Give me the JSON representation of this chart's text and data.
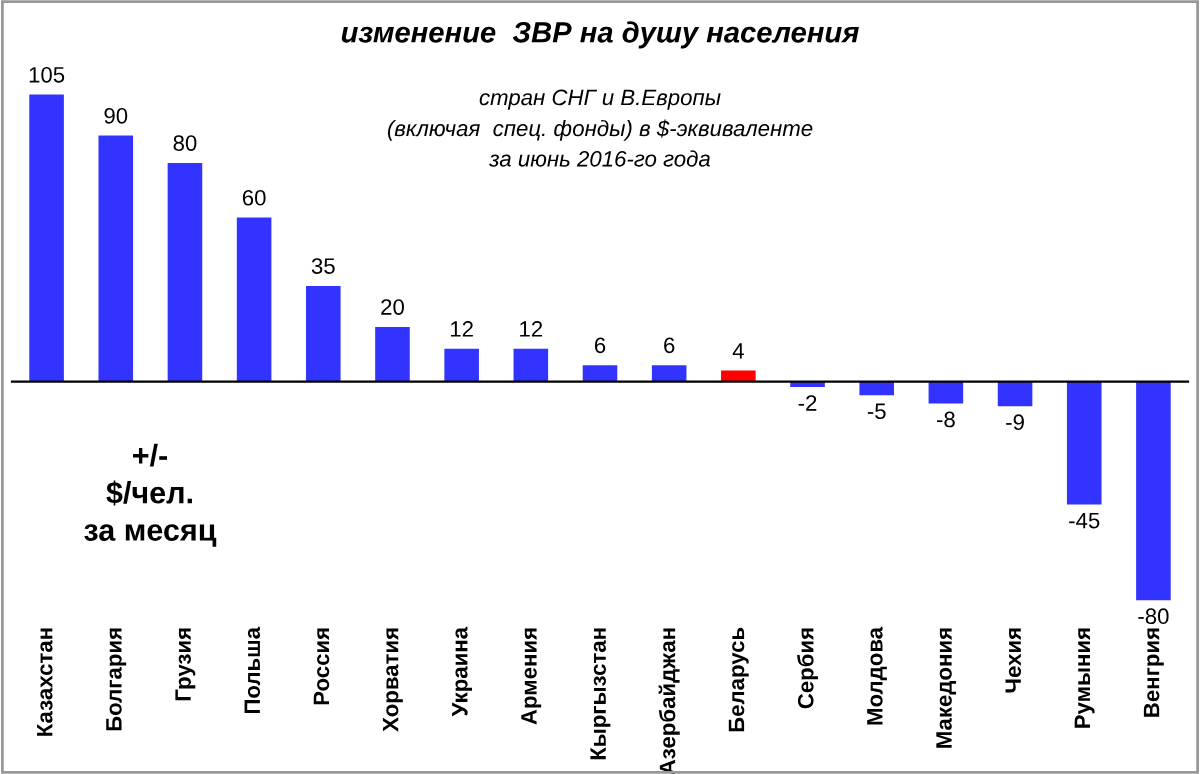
{
  "chart_data": {
    "type": "bar",
    "title": "изменение  ЗВР на душу населения",
    "subtitle": "стран СНГ и В.Европы\n(включая  спец. фонды) в $-эквиваленте\nза июнь 2016-го года",
    "categories": [
      "Казахстан",
      "Болгария",
      "Грузия",
      "Польша",
      "Россия",
      "Хорватия",
      "Украина",
      "Армения",
      "Кыргызстан",
      "Азербайджан",
      "Беларусь",
      "Сербия",
      "Молдова",
      "Македония",
      "Чехия",
      "Румыния",
      "Венгрия"
    ],
    "values": [
      105,
      90,
      80,
      60,
      35,
      20,
      12,
      12,
      6,
      6,
      4,
      -2,
      -5,
      -8,
      -9,
      -45,
      -80
    ],
    "colors": [
      "#3333ff",
      "#3333ff",
      "#3333ff",
      "#3333ff",
      "#3333ff",
      "#3333ff",
      "#3333ff",
      "#3333ff",
      "#3333ff",
      "#3333ff",
      "#ff0000",
      "#3333ff",
      "#3333ff",
      "#3333ff",
      "#3333ff",
      "#3333ff",
      "#3333ff"
    ],
    "data_labels": true,
    "annotations": [
      "+/-\n$/чел.\nза месяц"
    ]
  }
}
